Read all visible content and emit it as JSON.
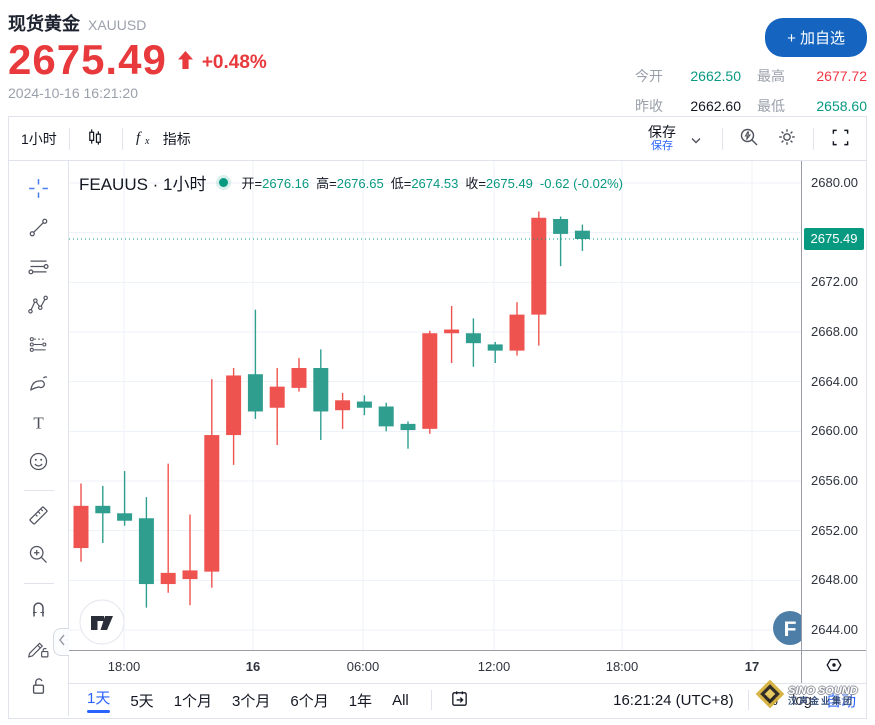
{
  "header": {
    "symbol_name": "现货黄金",
    "symbol_code": "XAUUSD",
    "price": "2675.49",
    "change_percent": "+0.48%",
    "timestamp": "2024-10-16 16:21:20",
    "add_watchlist_label": "+ 加自选",
    "stats": [
      {
        "label": "今开",
        "value": "2662.50",
        "color": "g"
      },
      {
        "label": "最高",
        "value": "2677.72",
        "color": "r"
      },
      {
        "label": "昨收",
        "value": "2662.60",
        "color": "d"
      },
      {
        "label": "最低",
        "value": "2658.60",
        "color": "g"
      }
    ]
  },
  "toolbar": {
    "interval_label": "1小时",
    "indicators_label": "指标",
    "save_label": "保存",
    "save_tooltip": "保存",
    "icons": [
      "candles-icon",
      "fx-icon",
      "chevron-down-icon",
      "quick-search-icon",
      "settings-gear-icon",
      "fullscreen-icon"
    ]
  },
  "drawing_tools": [
    {
      "icon": "crosshair-icon",
      "active": true
    },
    {
      "icon": "trend-line-icon"
    },
    {
      "icon": "fib-retracement-icon"
    },
    {
      "icon": "xabcd-pattern-icon"
    },
    {
      "icon": "forecast-position-icon"
    },
    {
      "icon": "brush-icon"
    },
    {
      "icon": "text-icon"
    },
    {
      "icon": "emoji-icon"
    },
    {
      "sep": true
    },
    {
      "icon": "ruler-icon"
    },
    {
      "icon": "zoom-in-icon"
    },
    {
      "sep": true
    },
    {
      "icon": "magnet-icon"
    },
    {
      "icon": "drawing-edit-lock-icon"
    },
    {
      "icon": "lock-all-icon"
    }
  ],
  "legend": {
    "title": "FEAUUS · 1小时",
    "items": [
      {
        "label": "开",
        "value": "2676.16"
      },
      {
        "label": "高",
        "value": "2676.65"
      },
      {
        "label": "低",
        "value": "2674.53"
      },
      {
        "label": "收",
        "value": "2675.49"
      }
    ],
    "change": "-0.62 (-0.02%)"
  },
  "chart_data": {
    "type": "candlestick",
    "symbol": "FEAUUS",
    "interval": "1小时",
    "ylim": [
      2642.4,
      2681.8
    ],
    "grid": true,
    "current_price": 2675.49,
    "colors": {
      "up": "#ef5350",
      "down": "#2f9e8e",
      "price_line": "#089981"
    },
    "y_ticks": [
      2680,
      2672,
      2668,
      2664,
      2660,
      2656,
      2652,
      2648,
      2644
    ],
    "grid_prices": [
      2680,
      2676,
      2672,
      2668,
      2664,
      2660,
      2656,
      2652,
      2648,
      2644
    ],
    "x_ticks": [
      {
        "label": "18:00",
        "x": 55
      },
      {
        "label": "16",
        "x": 184,
        "bold": true
      },
      {
        "label": "06:00",
        "x": 294
      },
      {
        "label": "12:00",
        "x": 425
      },
      {
        "label": "18:00",
        "x": 553
      },
      {
        "label": "17",
        "x": 683,
        "bold": true
      }
    ],
    "candles": [
      {
        "o": 2650.6,
        "h": 2655.8,
        "l": 2649.5,
        "c": 2654.0
      },
      {
        "o": 2654.0,
        "h": 2655.6,
        "l": 2651.0,
        "c": 2653.4
      },
      {
        "o": 2653.4,
        "h": 2656.8,
        "l": 2652.4,
        "c": 2652.8
      },
      {
        "o": 2653.0,
        "h": 2654.7,
        "l": 2645.8,
        "c": 2647.7
      },
      {
        "o": 2647.7,
        "h": 2657.4,
        "l": 2647.0,
        "c": 2648.6
      },
      {
        "o": 2648.1,
        "h": 2653.3,
        "l": 2646.0,
        "c": 2648.8
      },
      {
        "o": 2648.7,
        "h": 2664.2,
        "l": 2647.4,
        "c": 2659.7
      },
      {
        "o": 2659.7,
        "h": 2665.1,
        "l": 2657.3,
        "c": 2664.5
      },
      {
        "o": 2664.6,
        "h": 2669.8,
        "l": 2661.0,
        "c": 2661.6
      },
      {
        "o": 2661.9,
        "h": 2665.1,
        "l": 2658.9,
        "c": 2663.6
      },
      {
        "o": 2663.5,
        "h": 2665.9,
        "l": 2663.2,
        "c": 2665.1
      },
      {
        "o": 2665.1,
        "h": 2666.6,
        "l": 2659.3,
        "c": 2661.6
      },
      {
        "o": 2661.7,
        "h": 2663.1,
        "l": 2660.2,
        "c": 2662.5
      },
      {
        "o": 2662.4,
        "h": 2662.9,
        "l": 2661.3,
        "c": 2661.9
      },
      {
        "o": 2662.0,
        "h": 2662.3,
        "l": 2660.0,
        "c": 2660.4
      },
      {
        "o": 2660.6,
        "h": 2660.8,
        "l": 2658.6,
        "c": 2660.1
      },
      {
        "o": 2660.2,
        "h": 2668.1,
        "l": 2659.8,
        "c": 2667.9
      },
      {
        "o": 2667.9,
        "h": 2670.1,
        "l": 2665.5,
        "c": 2668.2
      },
      {
        "o": 2667.9,
        "h": 2669.1,
        "l": 2665.2,
        "c": 2667.1
      },
      {
        "o": 2667.0,
        "h": 2667.2,
        "l": 2665.5,
        "c": 2666.5
      },
      {
        "o": 2666.5,
        "h": 2670.4,
        "l": 2666.1,
        "c": 2669.4
      },
      {
        "o": 2669.4,
        "h": 2677.7,
        "l": 2666.9,
        "c": 2677.2
      },
      {
        "o": 2677.1,
        "h": 2677.3,
        "l": 2673.3,
        "c": 2675.9
      },
      {
        "o": 2676.16,
        "h": 2676.65,
        "l": 2674.53,
        "c": 2675.49
      }
    ]
  },
  "bottom_toolbar": {
    "ranges": [
      "1天",
      "5天",
      "1个月",
      "3个月",
      "6个月",
      "1年",
      "All"
    ],
    "active_range": "1天",
    "goto_icon": "calendar-goto-icon",
    "clock": "16:21:24 (UTC+8)",
    "percent_label": "%",
    "log_label": "log",
    "auto_label": "自动"
  },
  "axis_corner_icon": "axis-settings-icon",
  "watermarks": {
    "tradingview_logo": "TV",
    "f_logo": "F",
    "sino_line1": "SINO SOUND",
    "sino_line2": "汉声金业集团"
  }
}
